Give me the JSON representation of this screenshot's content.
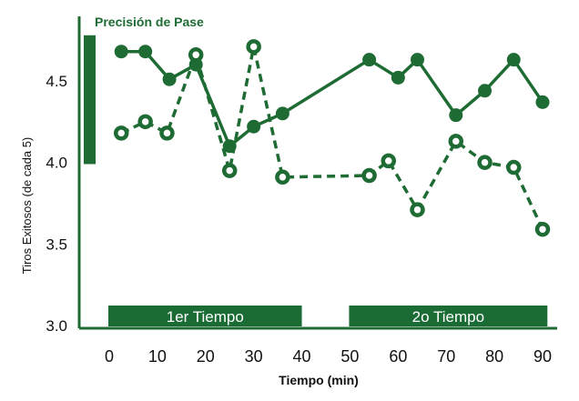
{
  "colors": {
    "accent": "#1e6b34",
    "band": "#1b6b35",
    "text": "#111111",
    "band_text": "#ffffff"
  },
  "chart_data": {
    "type": "line",
    "title": "Precisión de Pase",
    "xlabel": "Tiempo (min)",
    "ylabel": "Tiros Exitosos (de cada 5)",
    "xlim": [
      0,
      90
    ],
    "ylim": [
      3.0,
      4.75
    ],
    "x_ticks": [
      0,
      10,
      20,
      30,
      40,
      50,
      60,
      70,
      80,
      90
    ],
    "y_ticks": [
      3.0,
      3.5,
      4.0,
      4.5
    ],
    "y_tick_labels": [
      "3.0",
      "3.5",
      "4.0",
      "4.5"
    ],
    "grid": false,
    "series": [
      {
        "style": "solid-filled-markers",
        "x": [
          2.5,
          7.5,
          12.5,
          18,
          25,
          30,
          36,
          54,
          60,
          64,
          72,
          78,
          84,
          90
        ],
        "y": [
          4.68,
          4.68,
          4.51,
          4.6,
          4.1,
          4.22,
          4.3,
          4.63,
          4.52,
          4.63,
          4.29,
          4.44,
          4.63,
          4.37
        ]
      },
      {
        "style": "dashed-hollow-markers",
        "x": [
          2.5,
          7.5,
          12,
          18,
          25,
          30,
          36,
          54,
          58,
          64,
          72,
          78,
          84,
          90
        ],
        "y": [
          4.18,
          4.25,
          4.18,
          4.66,
          3.95,
          4.71,
          3.91,
          3.92,
          4.01,
          3.71,
          4.13,
          4.0,
          3.97,
          3.59
        ]
      }
    ],
    "legend": {
      "label": "Precisión de Pase",
      "placement": "top-left",
      "range": [
        3.99,
        4.78
      ]
    },
    "bands": [
      {
        "label": "1er Tiempo",
        "range": [
          0,
          40
        ]
      },
      {
        "label": "2o Tiempo",
        "range": [
          50,
          91
        ]
      }
    ]
  }
}
